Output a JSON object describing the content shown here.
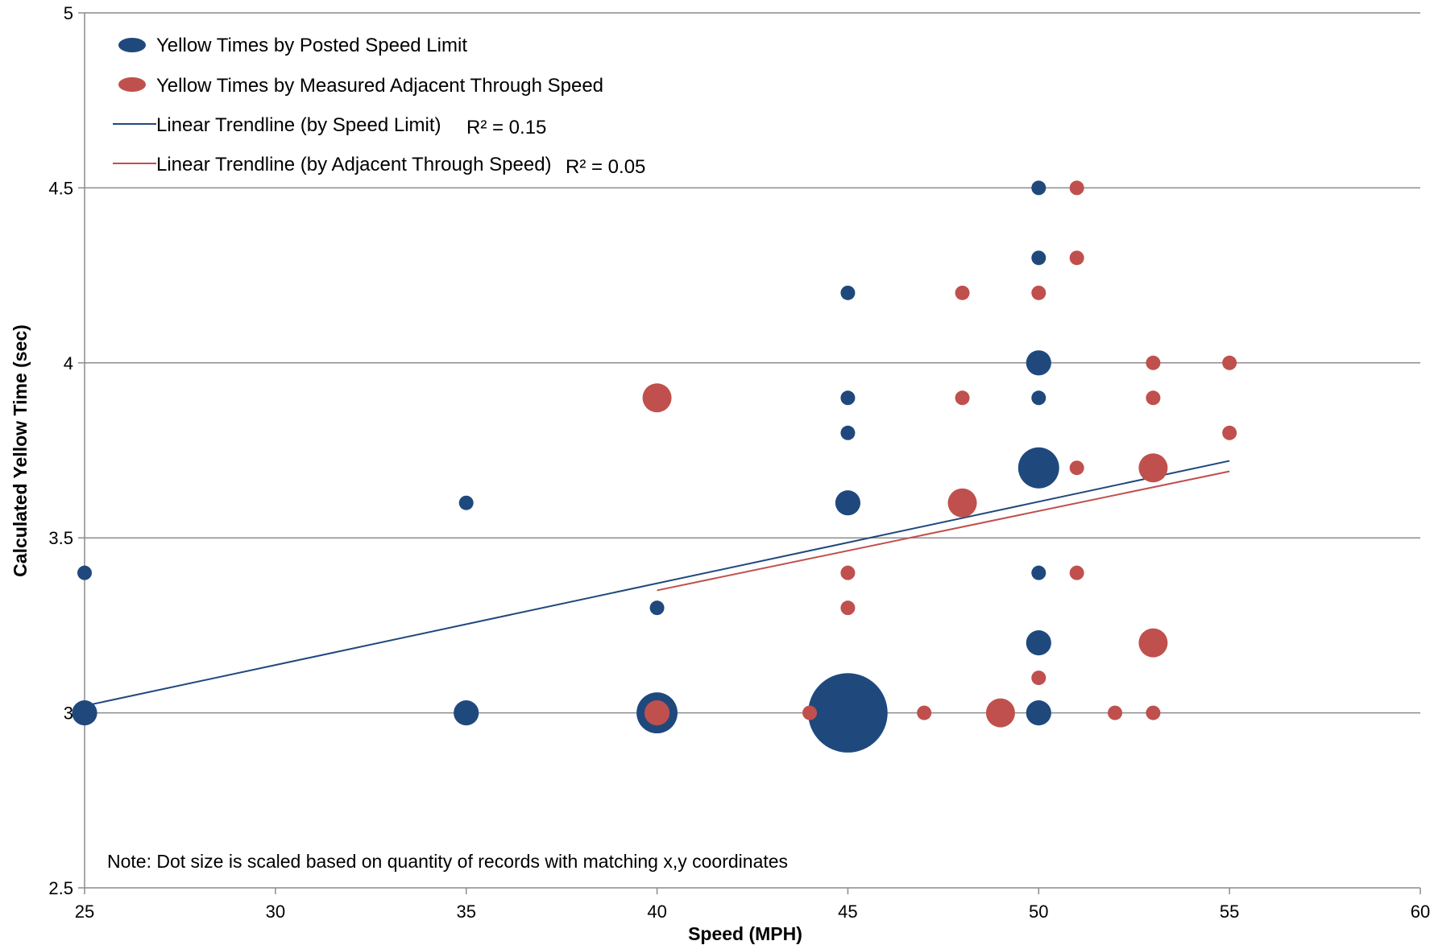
{
  "chart_data": {
    "type": "scatter",
    "title": "",
    "xlabel": "Speed (MPH)",
    "ylabel": "Calculated Yellow Time (sec)",
    "xlim": [
      25,
      60
    ],
    "ylim": [
      2.5,
      5
    ],
    "x_ticks": [
      "25",
      "30",
      "35",
      "40",
      "45",
      "50",
      "55",
      "60"
    ],
    "y_ticks": [
      "2.5",
      "3",
      "3.5",
      "4",
      "4.5",
      "5"
    ],
    "grid": "horizontal",
    "legend_position": "top-left",
    "series": [
      {
        "name": "Yellow Times by Posted Speed Limit",
        "color": "#1F497D",
        "marker": "bubble",
        "points": [
          {
            "x": 25,
            "y": 3.4,
            "size": 1
          },
          {
            "x": 25,
            "y": 3.0,
            "size": 3
          },
          {
            "x": 35,
            "y": 3.6,
            "size": 1
          },
          {
            "x": 35,
            "y": 3.0,
            "size": 3
          },
          {
            "x": 40,
            "y": 3.3,
            "size": 1
          },
          {
            "x": 40,
            "y": 3.0,
            "size": 8
          },
          {
            "x": 45,
            "y": 4.2,
            "size": 1
          },
          {
            "x": 45,
            "y": 3.9,
            "size": 1
          },
          {
            "x": 45,
            "y": 3.8,
            "size": 1
          },
          {
            "x": 45,
            "y": 3.6,
            "size": 3
          },
          {
            "x": 45,
            "y": 3.0,
            "size": 30
          },
          {
            "x": 50,
            "y": 4.5,
            "size": 1
          },
          {
            "x": 50,
            "y": 4.3,
            "size": 1
          },
          {
            "x": 50,
            "y": 4.0,
            "size": 3
          },
          {
            "x": 50,
            "y": 3.9,
            "size": 1
          },
          {
            "x": 50,
            "y": 3.7,
            "size": 8
          },
          {
            "x": 50,
            "y": 3.4,
            "size": 1
          },
          {
            "x": 50,
            "y": 3.2,
            "size": 3
          },
          {
            "x": 50,
            "y": 3.0,
            "size": 3
          }
        ]
      },
      {
        "name": "Yellow Times by Measured Adjacent Through Speed",
        "color": "#C0504D",
        "marker": "bubble",
        "points": [
          {
            "x": 40,
            "y": 3.9,
            "size": 4
          },
          {
            "x": 40,
            "y": 3.0,
            "size": 3
          },
          {
            "x": 44,
            "y": 3.0,
            "size": 1
          },
          {
            "x": 45,
            "y": 3.4,
            "size": 1
          },
          {
            "x": 45,
            "y": 3.3,
            "size": 1
          },
          {
            "x": 47,
            "y": 3.0,
            "size": 1
          },
          {
            "x": 48,
            "y": 4.2,
            "size": 1
          },
          {
            "x": 48,
            "y": 3.9,
            "size": 1
          },
          {
            "x": 48,
            "y": 3.6,
            "size": 4
          },
          {
            "x": 49,
            "y": 3.0,
            "size": 4
          },
          {
            "x": 50,
            "y": 4.2,
            "size": 1
          },
          {
            "x": 50,
            "y": 3.1,
            "size": 1
          },
          {
            "x": 51,
            "y": 4.5,
            "size": 1
          },
          {
            "x": 51,
            "y": 4.3,
            "size": 1
          },
          {
            "x": 51,
            "y": 3.7,
            "size": 1
          },
          {
            "x": 51,
            "y": 3.4,
            "size": 1
          },
          {
            "x": 52,
            "y": 3.0,
            "size": 1
          },
          {
            "x": 53,
            "y": 4.0,
            "size": 1
          },
          {
            "x": 53,
            "y": 3.9,
            "size": 1
          },
          {
            "x": 53,
            "y": 3.7,
            "size": 4
          },
          {
            "x": 53,
            "y": 3.2,
            "size": 4
          },
          {
            "x": 53,
            "y": 3.0,
            "size": 1
          },
          {
            "x": 55,
            "y": 4.0,
            "size": 1
          },
          {
            "x": 55,
            "y": 3.8,
            "size": 1
          }
        ]
      }
    ],
    "trendlines": [
      {
        "name": "Linear Trendline (by Speed Limit)",
        "color": "#1F497D",
        "x": [
          25,
          55
        ],
        "y": [
          3.02,
          3.72
        ],
        "r2_label": "R² = 0.15"
      },
      {
        "name": "Linear Trendline (by Adjacent Through Speed)",
        "color": "#C0504D",
        "x": [
          40,
          55
        ],
        "y": [
          3.35,
          3.69
        ],
        "r2_label": "R² = 0.05"
      }
    ],
    "note": "Note: Dot size is scaled based on quantity of records with matching x,y coordinates"
  }
}
